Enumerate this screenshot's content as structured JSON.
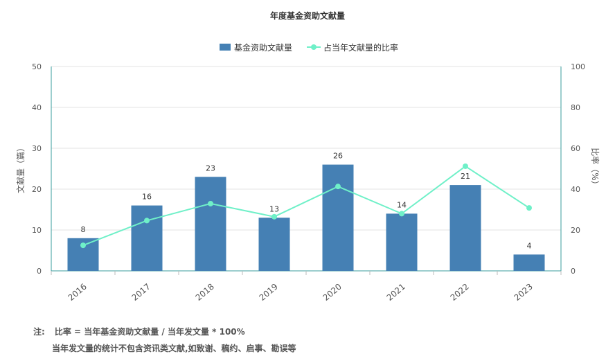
{
  "chart_data": {
    "type": "bar",
    "title": "年度基金资助文献量",
    "categories": [
      "2016",
      "2017",
      "2018",
      "2019",
      "2020",
      "2021",
      "2022",
      "2023"
    ],
    "series": [
      {
        "name": "基金资助文献量",
        "type": "bar",
        "axis": "left",
        "color": "#4580B4",
        "values": [
          8,
          16,
          23,
          13,
          26,
          14,
          21,
          4
        ],
        "data_labels": [
          "8",
          "16",
          "23",
          "13",
          "26",
          "14",
          "21",
          "4"
        ]
      },
      {
        "name": "占当年文献量的比率",
        "type": "line",
        "axis": "right",
        "color": "#6FF0C8",
        "values": [
          12.5,
          24.6,
          32.9,
          26.5,
          41.3,
          28.0,
          51.2,
          30.8
        ]
      }
    ],
    "ylabel": "文献量（篇）",
    "ylabel_right": "比率（%）",
    "ylim": [
      0,
      50
    ],
    "ylim_right": [
      0,
      100
    ],
    "yticks": [
      "0",
      "10",
      "20",
      "30",
      "40",
      "50"
    ],
    "yticks_right": [
      "0",
      "20",
      "40",
      "60",
      "80",
      "100"
    ],
    "grid": true,
    "legend_position": "top-center"
  },
  "notes": {
    "prefix": "注:",
    "line1": "比率 = 当年基金资助文献量 / 当年发文量 * 100%",
    "line2": "当年发文量的统计不包含资讯类文献,如致谢、稿约、启事、勘误等"
  }
}
